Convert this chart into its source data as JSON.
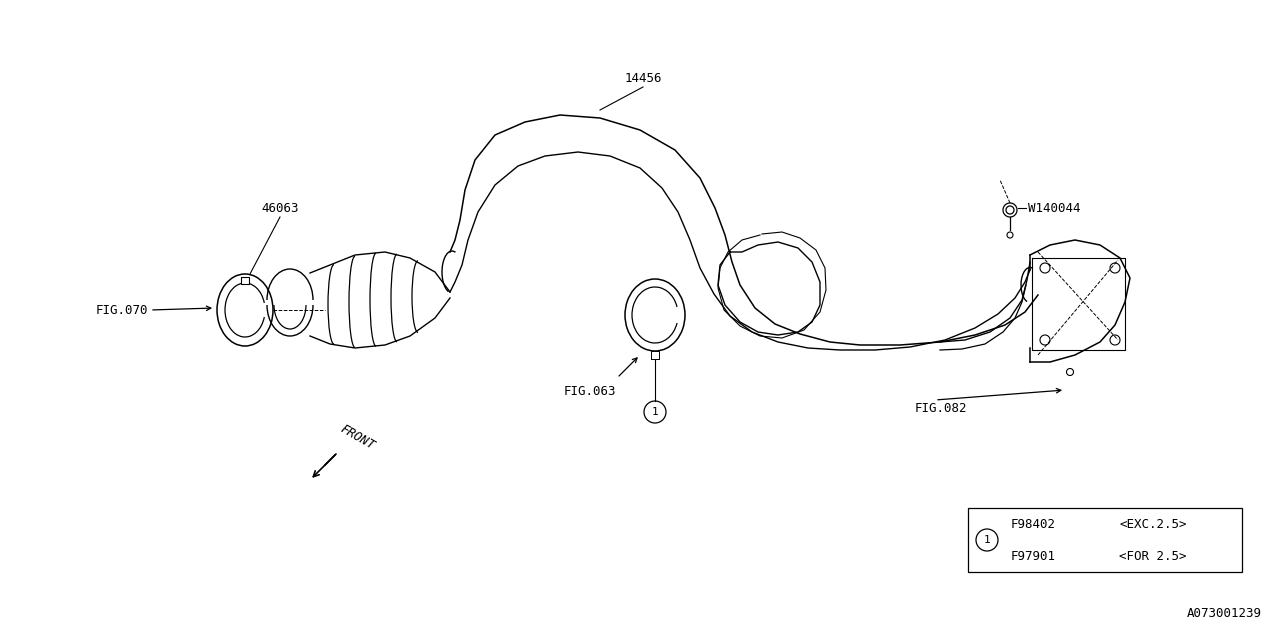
{
  "bg_color": "#ffffff",
  "line_color": "#000000",
  "fig_width": 12.8,
  "fig_height": 6.4,
  "part_number_top": "14456",
  "part_number_clamp1": "46063",
  "fig070_label": "FIG.070",
  "fig063_label": "FIG.063",
  "fig082_label": "FIG.082",
  "w140044_label": "W140044",
  "front_label": "FRONT",
  "table_rows": [
    [
      "F98402",
      "<EXC.2.5>"
    ],
    [
      "F97901",
      "<FOR 2.5>"
    ]
  ],
  "circle_label": "1",
  "diagram_id": "A073001239",
  "font_size_label": 9,
  "font_size_table": 9,
  "font_size_diagram_id": 9
}
